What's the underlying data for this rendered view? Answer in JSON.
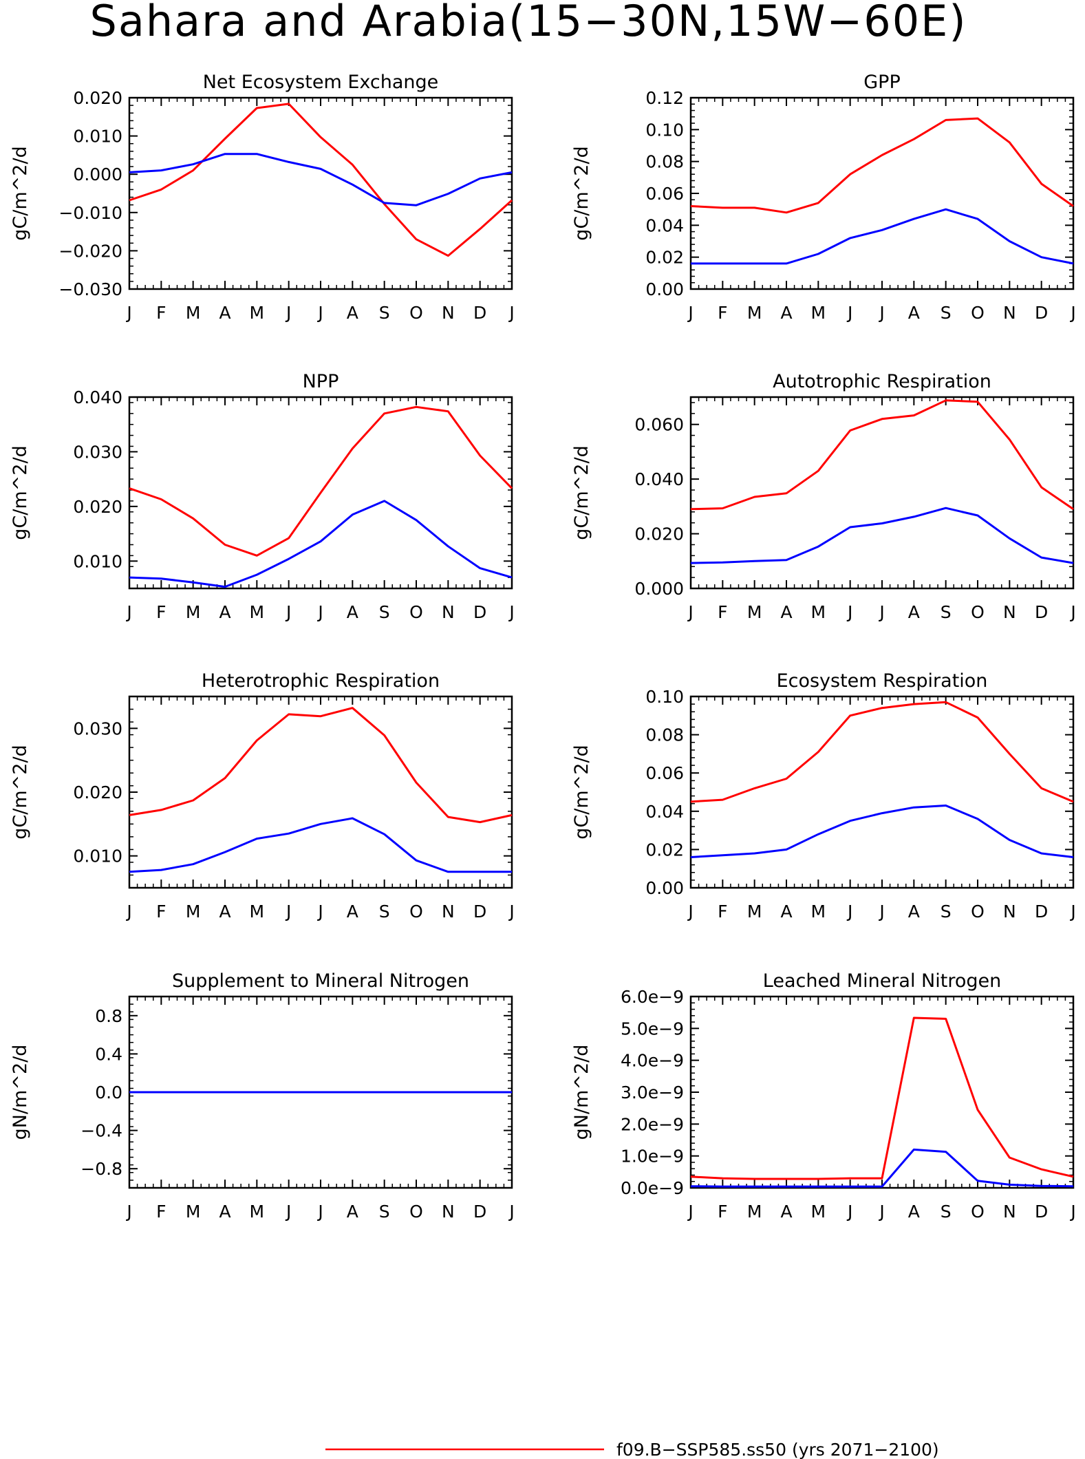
{
  "figure": {
    "title": "Sahara and Arabia(15−30N,15W−60E)"
  },
  "legend": {
    "entries": [
      {
        "label": "f09.B−SSP585.ss50 (yrs 2071−2100)",
        "color": "#ff0000"
      }
    ]
  },
  "colors": {
    "series_red": "#ff0000",
    "series_blue": "#0000ff"
  },
  "chart_data": [
    {
      "type": "line",
      "title": "Net Ecosystem Exchange",
      "ylabel": "gC/m^2/d",
      "x": [
        "J",
        "F",
        "M",
        "A",
        "M",
        "J",
        "J",
        "A",
        "S",
        "O",
        "N",
        "D",
        "J"
      ],
      "ylim": [
        -0.03,
        0.02
      ],
      "yticks": [
        0.02,
        0.01,
        0.0,
        -0.01,
        -0.02,
        -0.03
      ],
      "ytick_labels": [
        "0.020",
        "0.010",
        "0.000",
        "−0.010",
        "−0.020",
        "−0.030"
      ],
      "series": [
        {
          "color": "#ff0000",
          "values": [
            -0.0068,
            -0.004,
            0.001,
            0.0093,
            0.0173,
            0.0184,
            0.0097,
            0.0025,
            -0.0078,
            -0.017,
            -0.0213,
            -0.0143,
            -0.0068
          ]
        },
        {
          "color": "#0000ff",
          "values": [
            0.0005,
            0.001,
            0.0026,
            0.0053,
            0.0053,
            0.0032,
            0.0014,
            -0.0027,
            -0.0075,
            -0.0081,
            -0.0051,
            -0.0011,
            0.0005
          ]
        }
      ]
    },
    {
      "type": "line",
      "title": "GPP",
      "ylabel": "gC/m^2/d",
      "x": [
        "J",
        "F",
        "M",
        "A",
        "M",
        "J",
        "J",
        "A",
        "S",
        "O",
        "N",
        "D",
        "J"
      ],
      "ylim": [
        0.0,
        0.12
      ],
      "yticks": [
        0.12,
        0.1,
        0.08,
        0.06,
        0.04,
        0.02,
        0.0
      ],
      "ytick_labels": [
        "0.12",
        "0.10",
        "0.08",
        "0.06",
        "0.04",
        "0.02",
        "0.00"
      ],
      "series": [
        {
          "color": "#ff0000",
          "values": [
            0.052,
            0.051,
            0.051,
            0.048,
            0.054,
            0.072,
            0.084,
            0.094,
            0.106,
            0.107,
            0.092,
            0.066,
            0.052
          ]
        },
        {
          "color": "#0000ff",
          "values": [
            0.016,
            0.016,
            0.016,
            0.016,
            0.022,
            0.032,
            0.037,
            0.044,
            0.05,
            0.044,
            0.03,
            0.02,
            0.016
          ]
        }
      ]
    },
    {
      "type": "line",
      "title": "NPP",
      "ylabel": "gC/m^2/d",
      "x": [
        "J",
        "F",
        "M",
        "A",
        "M",
        "J",
        "J",
        "A",
        "S",
        "O",
        "N",
        "D",
        "J"
      ],
      "ylim": [
        0.005,
        0.04
      ],
      "yticks": [
        0.04,
        0.03,
        0.02,
        0.01
      ],
      "ytick_labels": [
        "0.040",
        "0.030",
        "0.020",
        "0.010"
      ],
      "series": [
        {
          "color": "#ff0000",
          "values": [
            0.0233,
            0.0213,
            0.0178,
            0.013,
            0.011,
            0.0142,
            0.0225,
            0.0306,
            0.037,
            0.0382,
            0.0374,
            0.0293,
            0.0233
          ]
        },
        {
          "color": "#0000ff",
          "values": [
            0.007,
            0.0068,
            0.0061,
            0.0053,
            0.0075,
            0.0104,
            0.0136,
            0.0185,
            0.021,
            0.0175,
            0.0127,
            0.0087,
            0.007
          ]
        }
      ]
    },
    {
      "type": "line",
      "title": "Autotrophic Respiration",
      "ylabel": "gC/m^2/d",
      "x": [
        "J",
        "F",
        "M",
        "A",
        "M",
        "J",
        "J",
        "A",
        "S",
        "O",
        "N",
        "D",
        "J"
      ],
      "ylim": [
        0.0,
        0.07
      ],
      "yticks": [
        0.06,
        0.04,
        0.02,
        0.0
      ],
      "ytick_labels": [
        "0.060",
        "0.040",
        "0.020",
        "0.000"
      ],
      "series": [
        {
          "color": "#ff0000",
          "values": [
            0.029,
            0.0293,
            0.0335,
            0.0348,
            0.043,
            0.0578,
            0.062,
            0.0633,
            0.0688,
            0.0683,
            0.0545,
            0.037,
            0.029
          ]
        },
        {
          "color": "#0000ff",
          "values": [
            0.0093,
            0.0095,
            0.01,
            0.0104,
            0.0153,
            0.0224,
            0.0238,
            0.0262,
            0.0294,
            0.0267,
            0.0183,
            0.0113,
            0.0093
          ]
        }
      ]
    },
    {
      "type": "line",
      "title": "Heterotrophic Respiration",
      "ylabel": "gC/m^2/d",
      "x": [
        "J",
        "F",
        "M",
        "A",
        "M",
        "J",
        "J",
        "A",
        "S",
        "O",
        "N",
        "D",
        "J"
      ],
      "ylim": [
        0.005,
        0.035
      ],
      "yticks": [
        0.03,
        0.02,
        0.01
      ],
      "ytick_labels": [
        "0.030",
        "0.020",
        "0.010"
      ],
      "series": [
        {
          "color": "#ff0000",
          "values": [
            0.0164,
            0.0172,
            0.0187,
            0.0222,
            0.0281,
            0.0322,
            0.0319,
            0.0332,
            0.0289,
            0.0215,
            0.0161,
            0.0153,
            0.0164
          ]
        },
        {
          "color": "#0000ff",
          "values": [
            0.0075,
            0.0078,
            0.0087,
            0.0106,
            0.0127,
            0.0135,
            0.015,
            0.0159,
            0.0134,
            0.0093,
            0.0075,
            0.0075,
            0.0075
          ]
        }
      ]
    },
    {
      "type": "line",
      "title": "Ecosystem Respiration",
      "ylabel": "gC/m^2/d",
      "x": [
        "J",
        "F",
        "M",
        "A",
        "M",
        "J",
        "J",
        "A",
        "S",
        "O",
        "N",
        "D",
        "J"
      ],
      "ylim": [
        0.0,
        0.1
      ],
      "yticks": [
        0.1,
        0.08,
        0.06,
        0.04,
        0.02,
        0.0
      ],
      "ytick_labels": [
        "0.10",
        "0.08",
        "0.06",
        "0.04",
        "0.02",
        "0.00"
      ],
      "series": [
        {
          "color": "#ff0000",
          "values": [
            0.045,
            0.046,
            0.052,
            0.057,
            0.071,
            0.09,
            0.094,
            0.096,
            0.097,
            0.089,
            0.07,
            0.052,
            0.045
          ]
        },
        {
          "color": "#0000ff",
          "values": [
            0.016,
            0.017,
            0.018,
            0.02,
            0.028,
            0.035,
            0.039,
            0.042,
            0.043,
            0.036,
            0.025,
            0.018,
            0.016
          ]
        }
      ]
    },
    {
      "type": "line",
      "title": "Supplement to Mineral Nitrogen",
      "ylabel": "gN/m^2/d",
      "x": [
        "J",
        "F",
        "M",
        "A",
        "M",
        "J",
        "J",
        "A",
        "S",
        "O",
        "N",
        "D",
        "J"
      ],
      "ylim": [
        -1.0,
        1.0
      ],
      "yticks": [
        0.8,
        0.4,
        0.0,
        -0.4,
        -0.8
      ],
      "ytick_labels": [
        "0.8",
        "0.4",
        "0.0",
        "−0.4",
        "−0.8"
      ],
      "series": [
        {
          "color": "#ff0000",
          "values": [
            0,
            0,
            0,
            0,
            0,
            0,
            0,
            0,
            0,
            0,
            0,
            0,
            0
          ]
        },
        {
          "color": "#0000ff",
          "values": [
            0,
            0,
            0,
            0,
            0,
            0,
            0,
            0,
            0,
            0,
            0,
            0,
            0
          ]
        }
      ]
    },
    {
      "type": "line",
      "title": "Leached Mineral Nitrogen",
      "ylabel": "gN/m^2/d",
      "x": [
        "J",
        "F",
        "M",
        "A",
        "M",
        "J",
        "J",
        "A",
        "S",
        "O",
        "N",
        "D",
        "J"
      ],
      "ylim": [
        0.0,
        6e-09
      ],
      "yticks": [
        6e-09,
        5e-09,
        4e-09,
        3e-09,
        2e-09,
        1e-09,
        0.0
      ],
      "ytick_labels": [
        "6.0e−9",
        "5.0e−9",
        "4.0e−9",
        "3.0e−9",
        "2.0e−9",
        "1.0e−9",
        "0.0e−9"
      ],
      "series": [
        {
          "color": "#ff0000",
          "values": [
            3.5e-10,
            3e-10,
            2.8e-10,
            2.8e-10,
            2.8e-10,
            3e-10,
            3e-10,
            5.33e-09,
            5.3e-09,
            2.45e-09,
            9.5e-10,
            5.8e-10,
            3.5e-10
          ]
        },
        {
          "color": "#0000ff",
          "values": [
            5e-11,
            4e-11,
            4e-11,
            4e-11,
            4e-11,
            4e-11,
            4e-11,
            1.2e-09,
            1.13e-09,
            2.2e-10,
            1e-10,
            6e-11,
            5e-11
          ]
        }
      ]
    }
  ]
}
